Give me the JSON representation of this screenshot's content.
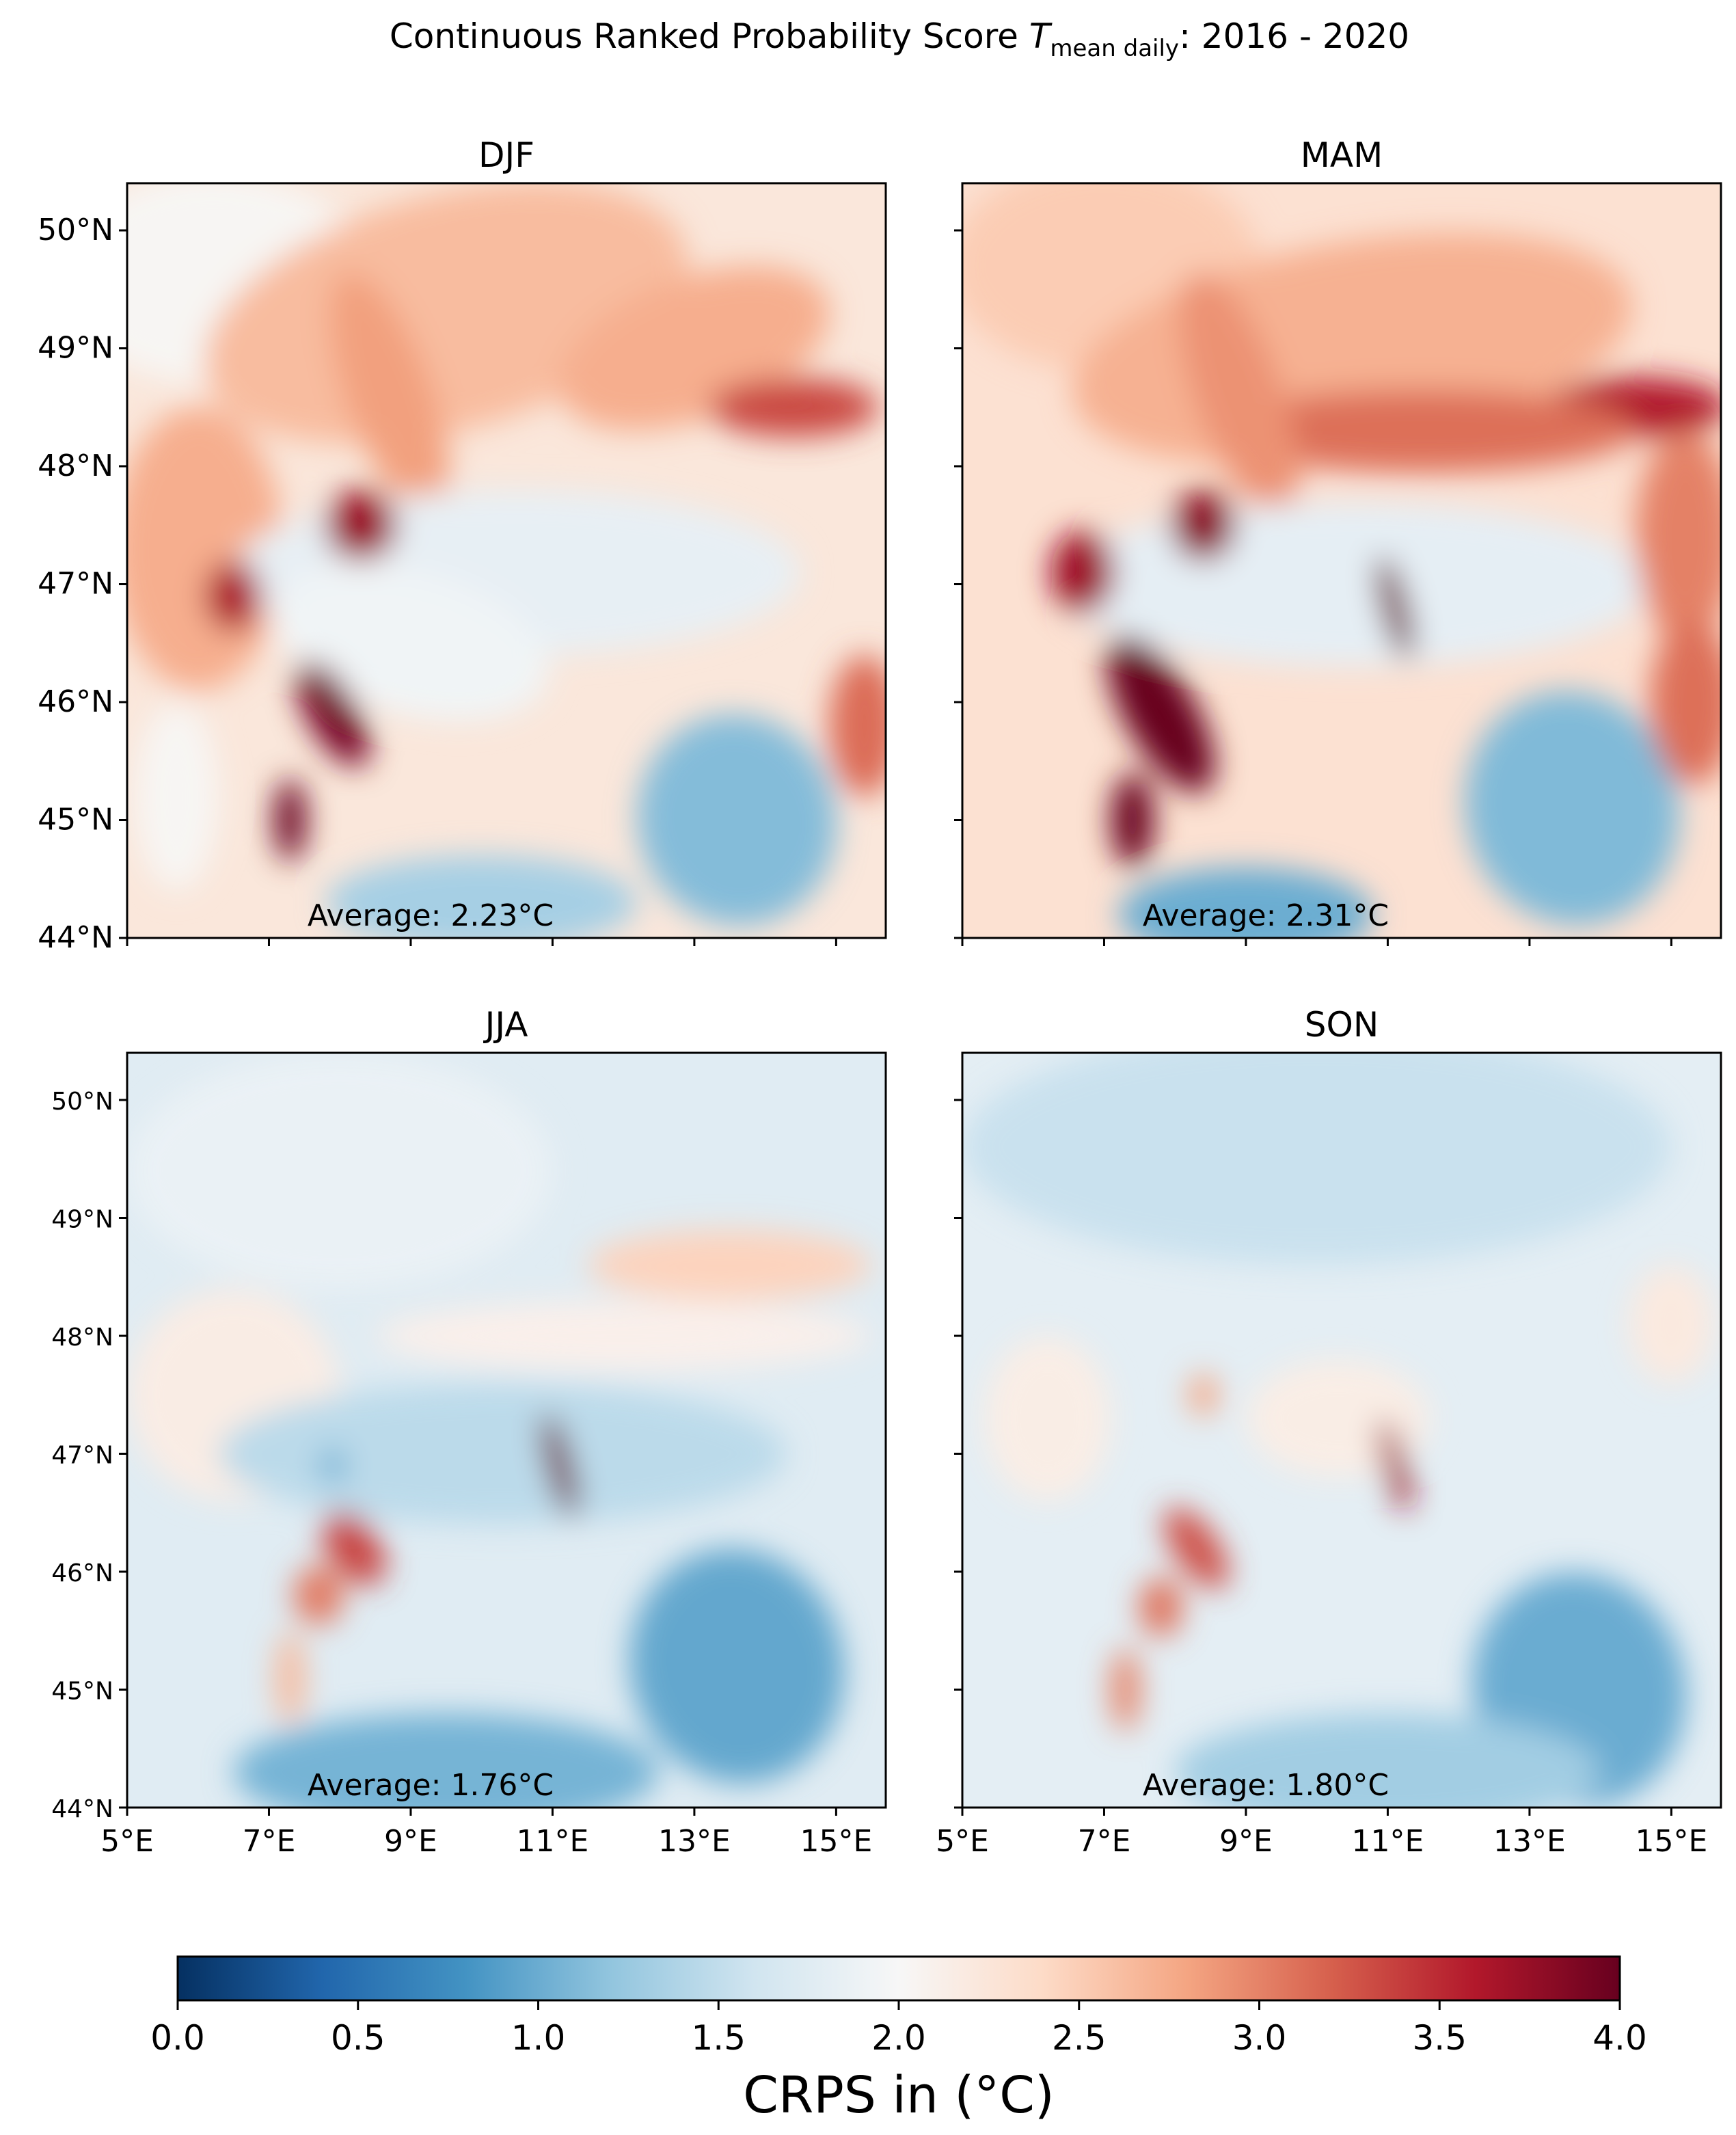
{
  "chart_data": {
    "type": "heatmap",
    "title": {
      "prefix": "Continuous Ranked Probability Score ",
      "symbol": "T",
      "subscript": "mean daily",
      "suffix": ": 2016 - 2020"
    },
    "colormap": "RdBu_r",
    "color_range": [
      0.0,
      4.0
    ],
    "colorbar": {
      "label": "CRPS in (°C)",
      "orientation": "horizontal",
      "placement": "bottom",
      "ticks": [
        0.0,
        0.5,
        1.0,
        1.5,
        2.0,
        2.5,
        3.0,
        3.5,
        4.0
      ],
      "tick_labels": [
        "0.0",
        "0.5",
        "1.0",
        "1.5",
        "2.0",
        "2.5",
        "3.0",
        "3.5",
        "4.0"
      ]
    },
    "xlim": [
      5.0,
      15.7
    ],
    "ylim": [
      44.0,
      50.4
    ],
    "x_ticks": [
      5,
      7,
      9,
      11,
      13,
      15
    ],
    "x_tick_labels": [
      "5°E",
      "7°E",
      "9°E",
      "11°E",
      "13°E",
      "15°E"
    ],
    "y_ticks": [
      44,
      45,
      46,
      47,
      48,
      49,
      50
    ],
    "y_tick_labels": [
      "44°N",
      "45°N",
      "46°N",
      "47°N",
      "48°N",
      "49°N",
      "50°N"
    ],
    "panels": [
      {
        "title": "DJF",
        "average_label": "Average: 2.23°C",
        "average": 2.23
      },
      {
        "title": "MAM",
        "average_label": "Average: 2.31°C",
        "average": 2.31
      },
      {
        "title": "JJA",
        "average_label": "Average: 1.76°C",
        "average": 1.76
      },
      {
        "title": "SON",
        "average_label": "Average: 1.80°C",
        "average": 1.8
      }
    ],
    "grid": false
  }
}
